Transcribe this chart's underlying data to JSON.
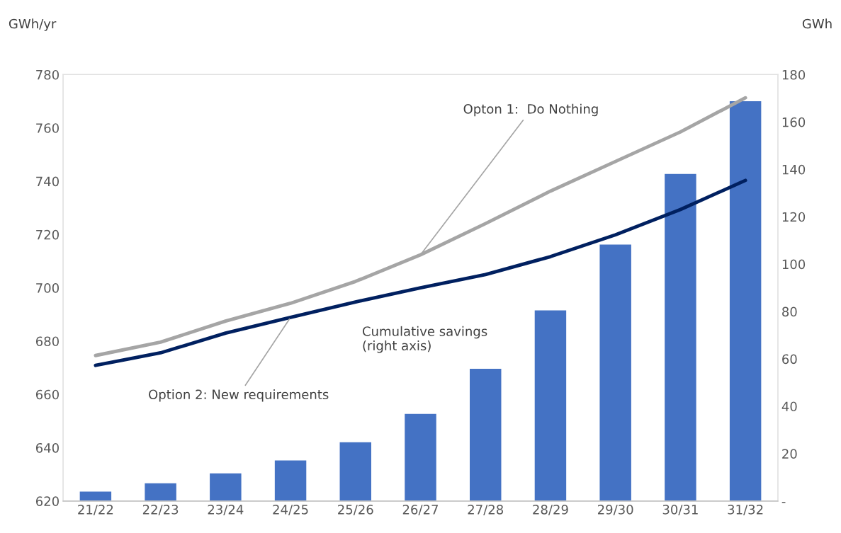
{
  "chart_data": {
    "type": "line",
    "ylabel": "GWh/yr",
    "y2label": "GWh",
    "categories": [
      "21/22",
      "22/23",
      "23/24",
      "24/25",
      "25/26",
      "26/27",
      "27/28",
      "28/29",
      "29/30",
      "30/31",
      "31/32"
    ],
    "series": [
      {
        "type": "bar",
        "axis": "y2",
        "color": "#4472c4",
        "values": [
          4.2,
          7.7,
          11.9,
          17.3,
          25,
          37,
          56,
          80.7,
          108.5,
          138.3,
          169
        ]
      },
      {
        "color": "#a5a5a5",
        "values": [
          674.6,
          679.6,
          687.5,
          694.2,
          702.4,
          712.4,
          724.1,
          736.3,
          747.4,
          758.5,
          771.3
        ]
      },
      {
        "color": "#002060",
        "values": [
          670.9,
          675.6,
          683,
          688.9,
          694.7,
          700,
          705,
          711.7,
          719.9,
          729.4,
          740.3
        ]
      }
    ],
    "ylim": [
      620,
      780
    ],
    "yticks": [
      620,
      640,
      660,
      680,
      700,
      720,
      740,
      760,
      780
    ],
    "y2lim": [
      0,
      180
    ],
    "y2ticks": [
      {
        "value": 0,
        "label": "-"
      },
      20,
      40,
      60,
      80,
      100,
      120,
      140,
      160,
      180
    ],
    "annotations": [
      {
        "text": "Opton 1:  Do Nothing",
        "x": "26/27",
        "y": 712.4
      },
      {
        "text": "Option 2: New requirements",
        "x": "24/25",
        "y": 688.9
      },
      "Cumulative savings\n(right axis)"
    ],
    "grid": false,
    "legend": false,
    "marker": "none",
    "line_style": "solid"
  }
}
